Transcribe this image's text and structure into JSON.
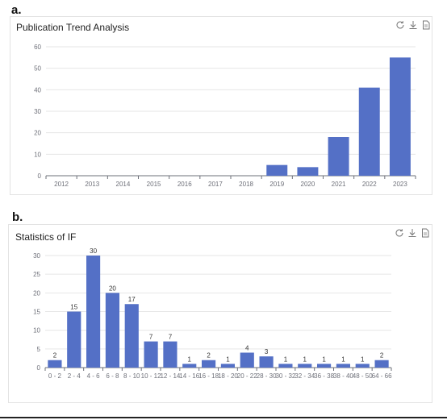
{
  "panel_a_label": "a.",
  "panel_b_label": "b.",
  "colors": {
    "bar": "#5470c6",
    "grid": "#e6e6e6",
    "axis": "#6e7079",
    "tick_text": "#6e7079",
    "label_text": "#333333"
  },
  "toolbar_icons": [
    "refresh-icon",
    "download-icon",
    "document-icon"
  ],
  "chart_data": [
    {
      "type": "bar",
      "title": "Publication Trend Analysis",
      "categories": [
        "2012",
        "2013",
        "2014",
        "2015",
        "2016",
        "2017",
        "2018",
        "2019",
        "2020",
        "2021",
        "2022",
        "2023"
      ],
      "values": [
        0,
        0,
        0,
        0,
        0,
        0,
        0,
        5,
        4,
        18,
        41,
        55
      ],
      "ylim": [
        0,
        60
      ],
      "yticks": [
        0,
        10,
        20,
        30,
        40,
        50,
        60
      ],
      "grid": true,
      "data_labels": false
    },
    {
      "type": "bar",
      "title": "Statistics of IF",
      "categories": [
        "0 - 2",
        "2 - 4",
        "4 - 6",
        "6 - 8",
        "8 - 10",
        "10 - 12",
        "12 - 14",
        "14 - 16",
        "16 - 18",
        "18 - 20",
        "20 - 22",
        "28 - 30",
        "30 - 32",
        "32 - 34",
        "36 - 38",
        "38 - 40",
        "48 - 50",
        "64 - 66"
      ],
      "values": [
        2,
        15,
        30,
        20,
        17,
        7,
        7,
        1,
        2,
        1,
        4,
        3,
        1,
        1,
        1,
        1,
        1,
        2
      ],
      "ylim": [
        0,
        30
      ],
      "yticks": [
        0,
        5,
        10,
        15,
        20,
        25,
        30
      ],
      "grid": true,
      "data_labels": true
    }
  ]
}
